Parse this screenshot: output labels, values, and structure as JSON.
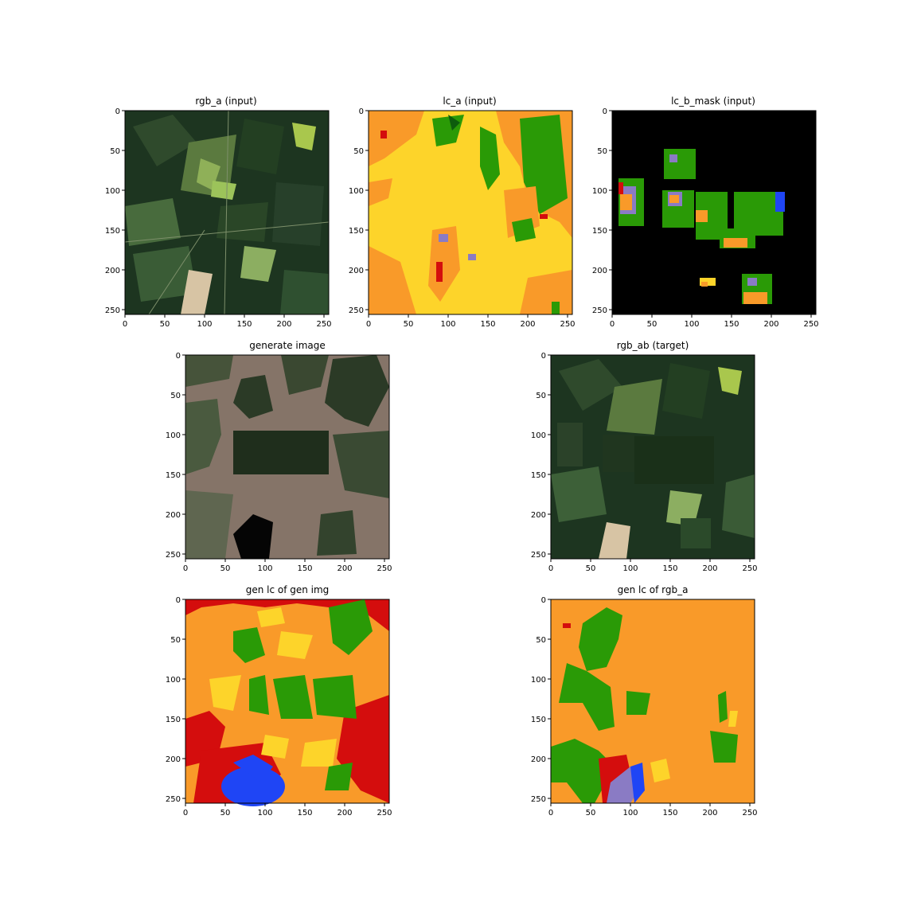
{
  "figure": {
    "background": "#ffffff",
    "axis_ticks": [
      "0",
      "50",
      "100",
      "150",
      "200",
      "250"
    ],
    "panels": [
      {
        "key": "rgb_a",
        "title": "rgb_a (input)"
      },
      {
        "key": "lc_a",
        "title": "lc_a (input)"
      },
      {
        "key": "lc_b_mask",
        "title": "lc_b_mask (input)"
      },
      {
        "key": "generate",
        "title": "generate image"
      },
      {
        "key": "rgb_ab",
        "title": "rgb_ab (target)"
      },
      {
        "key": "gen_lc_gen",
        "title": "gen lc of gen img"
      },
      {
        "key": "gen_lc_rgb",
        "title": "gen lc of rgb_a"
      }
    ]
  },
  "colors": {
    "lc_yellow": "#fdd42a",
    "lc_orange": "#f99a29",
    "lc_green": "#2a9a06",
    "lc_darkgreen": "#0d5c0d",
    "lc_red": "#d40d0d",
    "lc_blue": "#1f45f5",
    "lc_purple": "#8a7bc4",
    "mask_black": "#000000",
    "sat_dark": "#1d3520",
    "sat_mid": "#3c5e35",
    "sat_light": "#8fb058",
    "gen_tan": "#857468",
    "gen_dark": "#2b3a26"
  }
}
